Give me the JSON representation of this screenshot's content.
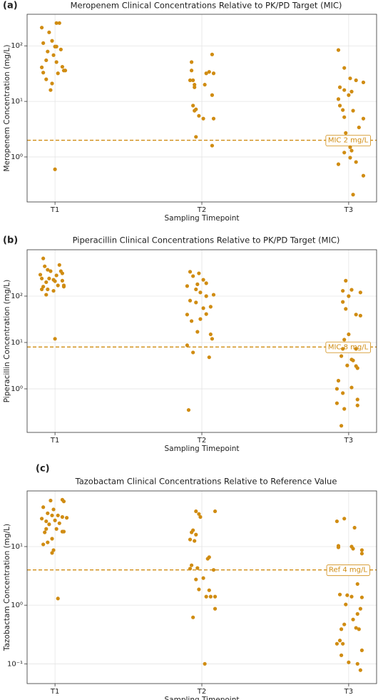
{
  "chart_data": [
    {
      "type": "scatter",
      "panel_label": "(a)",
      "title": "Meropenem Clinical Concentrations Relative to PK/PD Target (MIC)",
      "x_label": "Sampling Timepoint",
      "y_label": "Meropenem Concentration (mg/L)",
      "color": "#d08c12",
      "log_y": true,
      "grid": true,
      "xlim": [
        -0.19,
        2.19
      ],
      "xticks": [
        {
          "value": 0,
          "label": "T1"
        },
        {
          "value": 1,
          "label": "T2"
        },
        {
          "value": 2,
          "label": "T3"
        }
      ],
      "ylim": [
        0.155,
        370
      ],
      "yticks": [
        {
          "value": 1,
          "label": "10⁰"
        },
        {
          "value": 10,
          "label": "10¹"
        },
        {
          "value": 100,
          "label": "10²"
        }
      ],
      "reference": {
        "value": 2,
        "label": "MIC 2 mg/L",
        "color": "#d08c12"
      },
      "x": [
        -0.09,
        0.01,
        0.03,
        -0.04,
        -0.02,
        -0.08,
        0.0,
        0.01,
        0.04,
        -0.05,
        -0.01,
        -0.06,
        0.01,
        -0.09,
        0.05,
        -0.08,
        0.02,
        0.06,
        0.07,
        -0.06,
        -0.02,
        -0.03,
        0.0,
        0.93,
        0.93,
        1.07,
        1.03,
        1.05,
        1.08,
        0.92,
        0.94,
        0.95,
        0.95,
        1.02,
        1.07,
        0.94,
        0.96,
        0.98,
        0.95,
        1.01,
        1.08,
        0.96,
        1.07,
        1.93,
        1.97,
        2.01,
        2.05,
        2.1,
        1.94,
        1.97,
        1.93,
        2.02,
        2.0,
        1.94,
        1.96,
        2.03,
        1.97,
        2.1,
        2.07,
        1.98,
        2.01,
        1.97,
        2.02,
        1.93,
        2.01,
        2.05,
        2.1,
        2.03
      ],
      "values": [
        213,
        257,
        257,
        175,
        123,
        112,
        97,
        97,
        86,
        79,
        68,
        55,
        51,
        41,
        42,
        33,
        32,
        36,
        36,
        25,
        21,
        16,
        0.6,
        51,
        36,
        70,
        32,
        34,
        32,
        24,
        24,
        20,
        18,
        20,
        13,
        8.4,
        7.2,
        5.5,
        6.8,
        4.9,
        4.9,
        2.3,
        1.6,
        84,
        40,
        26,
        24,
        22,
        18,
        16,
        11,
        15,
        13,
        8.4,
        7,
        6.8,
        5.2,
        4.9,
        3.4,
        2.7,
        1.5,
        1.2,
        1.3,
        0.74,
        0.97,
        0.81,
        0.46,
        0.21
      ]
    },
    {
      "type": "scatter",
      "panel_label": "(b)",
      "title": "Piperacillin Clinical Concentrations Relative to PK/PD Target (MIC)",
      "x_label": "Sampling Timepoint",
      "y_label": "Piperacillin Concentration (mg/L)",
      "color": "#d08c12",
      "log_y": true,
      "grid": true,
      "xlim": [
        -0.19,
        2.19
      ],
      "xticks": [
        {
          "value": 0,
          "label": "T1"
        },
        {
          "value": 1,
          "label": "T2"
        },
        {
          "value": 2,
          "label": "T3"
        }
      ],
      "ylim": [
        0.115,
        1000
      ],
      "yticks": [
        {
          "value": 1,
          "label": "10⁰"
        },
        {
          "value": 10,
          "label": "10¹"
        },
        {
          "value": 100,
          "label": "10²"
        }
      ],
      "reference": {
        "value": 8,
        "label": "MIC 8 mg/L",
        "color": "#d08c12"
      },
      "x": [
        -0.08,
        -0.07,
        0.03,
        -0.1,
        -0.05,
        -0.03,
        0.04,
        0.05,
        0.01,
        -0.09,
        -0.04,
        -0.01,
        -0.06,
        0.0,
        0.05,
        -0.08,
        0.06,
        -0.05,
        0.02,
        -0.01,
        -0.09,
        -0.06,
        0.06,
        0.0,
        0.92,
        0.94,
        0.98,
        1.01,
        0.97,
        1.03,
        0.9,
        0.96,
        0.99,
        1.08,
        1.03,
        0.92,
        0.96,
        1.01,
        0.9,
        0.99,
        1.03,
        1.06,
        0.93,
        0.97,
        1.06,
        1.07,
        0.9,
        0.94,
        1.05,
        0.91,
        1.98,
        1.96,
        2.02,
        2.08,
        2.0,
        1.96,
        1.98,
        2.05,
        2.08,
        2.0,
        1.97,
        1.96,
        2.05,
        2.02,
        1.99,
        2.05,
        1.95,
        2.06,
        1.93,
        1.92,
        2.02,
        2.03,
        1.96,
        2.06,
        1.92,
        2.06,
        1.97,
        1.95
      ],
      "values": [
        650,
        440,
        470,
        290,
        370,
        345,
        345,
        310,
        280,
        240,
        240,
        225,
        200,
        210,
        215,
        160,
        170,
        140,
        170,
        130,
        140,
        107,
        160,
        12,
        335,
        270,
        310,
        225,
        180,
        190,
        165,
        140,
        120,
        107,
        100,
        80,
        73,
        55,
        40,
        32,
        41,
        59,
        29,
        17,
        15,
        12,
        8.7,
        6.1,
        4.8,
        0.35,
        215,
        130,
        137,
        120,
        100,
        75,
        53,
        40,
        38,
        15,
        11.5,
        7.3,
        7.3,
        4.3,
        3.2,
        3.1,
        5.1,
        2.8,
        1.5,
        1.0,
        1.07,
        4.1,
        0.81,
        0.59,
        0.49,
        0.44,
        0.37,
        0.16
      ]
    },
    {
      "type": "scatter",
      "panel_label": "(c)",
      "title": "Tazobactam Clinical Concentrations Relative to Reference Value",
      "x_label": "Sampling Timepoint",
      "y_label": "Tazobactam Concentration (mg/L)",
      "color": "#d08c12",
      "log_y": true,
      "grid": true,
      "xlim": [
        -0.19,
        2.19
      ],
      "xticks": [
        {
          "value": 0,
          "label": "T1"
        },
        {
          "value": 1,
          "label": "T2"
        },
        {
          "value": 2,
          "label": "T3"
        }
      ],
      "ylim": [
        0.046,
        89
      ],
      "yticks": [
        {
          "value": 0.1,
          "label": "10⁻¹"
        },
        {
          "value": 1,
          "label": "10⁰"
        },
        {
          "value": 10,
          "label": "10¹"
        }
      ],
      "reference": {
        "value": 4,
        "label": "Ref 4 mg/L",
        "color": "#d08c12"
      },
      "x": [
        -0.03,
        0.05,
        0.06,
        -0.08,
        -0.01,
        -0.05,
        -0.02,
        0.02,
        0.05,
        0.08,
        -0.09,
        -0.06,
        0.0,
        -0.04,
        0.03,
        -0.06,
        0.01,
        -0.07,
        0.05,
        0.06,
        -0.02,
        -0.08,
        -0.05,
        -0.01,
        -0.02,
        0.02,
        0.96,
        1.09,
        0.98,
        0.99,
        0.93,
        0.94,
        0.96,
        0.92,
        0.95,
        1.05,
        1.04,
        0.93,
        0.92,
        0.97,
        1.08,
        0.96,
        1.01,
        0.98,
        1.05,
        1.03,
        1.06,
        1.09,
        1.09,
        0.94,
        1.02,
        1.97,
        1.92,
        2.04,
        1.93,
        1.93,
        2.02,
        2.03,
        2.09,
        2.09,
        2.06,
        1.94,
        1.99,
        2.02,
        2.09,
        1.98,
        2.08,
        2.06,
        2.03,
        1.97,
        2.05,
        2.07,
        1.95,
        2.09,
        1.94,
        1.92,
        1.96,
        1.95,
        2.0,
        2.06,
        2.08
      ],
      "values": [
        61,
        63,
        59,
        47,
        43,
        37,
        34,
        34,
        32,
        31,
        30,
        27,
        28,
        24,
        25,
        20,
        20,
        17.5,
        18,
        18,
        13.6,
        10.9,
        11.8,
        8.7,
        7.8,
        1.3,
        40,
        40,
        36,
        32,
        17.5,
        19,
        16,
        13.2,
        12.5,
        6.6,
        6.2,
        4.8,
        4.2,
        4.3,
        4.0,
        2.75,
        2.9,
        1.86,
        1.8,
        1.4,
        1.4,
        1.4,
        0.87,
        0.62,
        0.1,
        30,
        27,
        21,
        10.3,
        9.7,
        10,
        9.2,
        8.7,
        7.6,
        2.3,
        1.52,
        1.48,
        1.4,
        1.36,
        1.03,
        0.87,
        0.71,
        0.57,
        0.47,
        0.41,
        0.39,
        0.39,
        0.17,
        0.25,
        0.22,
        0.22,
        0.14,
        0.106,
        0.1,
        0.078
      ]
    }
  ]
}
